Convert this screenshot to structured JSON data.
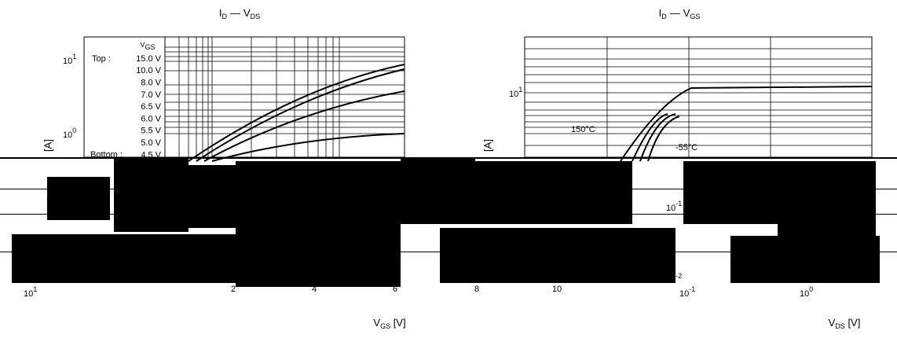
{
  "left_chart": {
    "title": {
      "main": "I",
      "sub": "D",
      "sep": "—",
      "main2": "V",
      "sub2": "DS"
    },
    "legend": {
      "header": {
        "main": "V",
        "sub": "GS"
      },
      "top": "Top :",
      "bottom": "Bottom :",
      "entries": [
        "15.0 V",
        "10.0 V",
        "8.0 V",
        "7.0 V",
        "6.5 V",
        "6.0 V",
        "5.5 V",
        "5.0 V",
        "4.5 V"
      ]
    },
    "y_unit": "[A]",
    "yticks": [
      {
        "base": "10",
        "exp": "1"
      },
      {
        "base": "10",
        "exp": "0"
      }
    ]
  },
  "right_chart": {
    "title": {
      "main": "I",
      "sub": "D",
      "sep": "—",
      "main2": "V",
      "sub2": "GS"
    },
    "y_unit": "[A]",
    "yticks": [
      {
        "base": "10",
        "exp": "1"
      },
      {
        "base": "10",
        "exp": "-1"
      },
      {
        "base": "10",
        "exp": "-2"
      }
    ],
    "annotations": [
      "150°C",
      "-55°C"
    ]
  },
  "bottom": {
    "left_tick": {
      "base": "10",
      "exp": "1"
    },
    "vgs_ticks": [
      "2",
      "4",
      "6",
      "8",
      "10"
    ],
    "vds_ticks": [
      {
        "base": "10",
        "exp": "-1"
      },
      {
        "base": "10",
        "exp": "0"
      }
    ],
    "vgs_label": {
      "main": "V",
      "sub": "GS",
      "unit": " [V]"
    },
    "vds_label": {
      "main": "V",
      "sub": "DS",
      "unit": " [V]"
    }
  }
}
